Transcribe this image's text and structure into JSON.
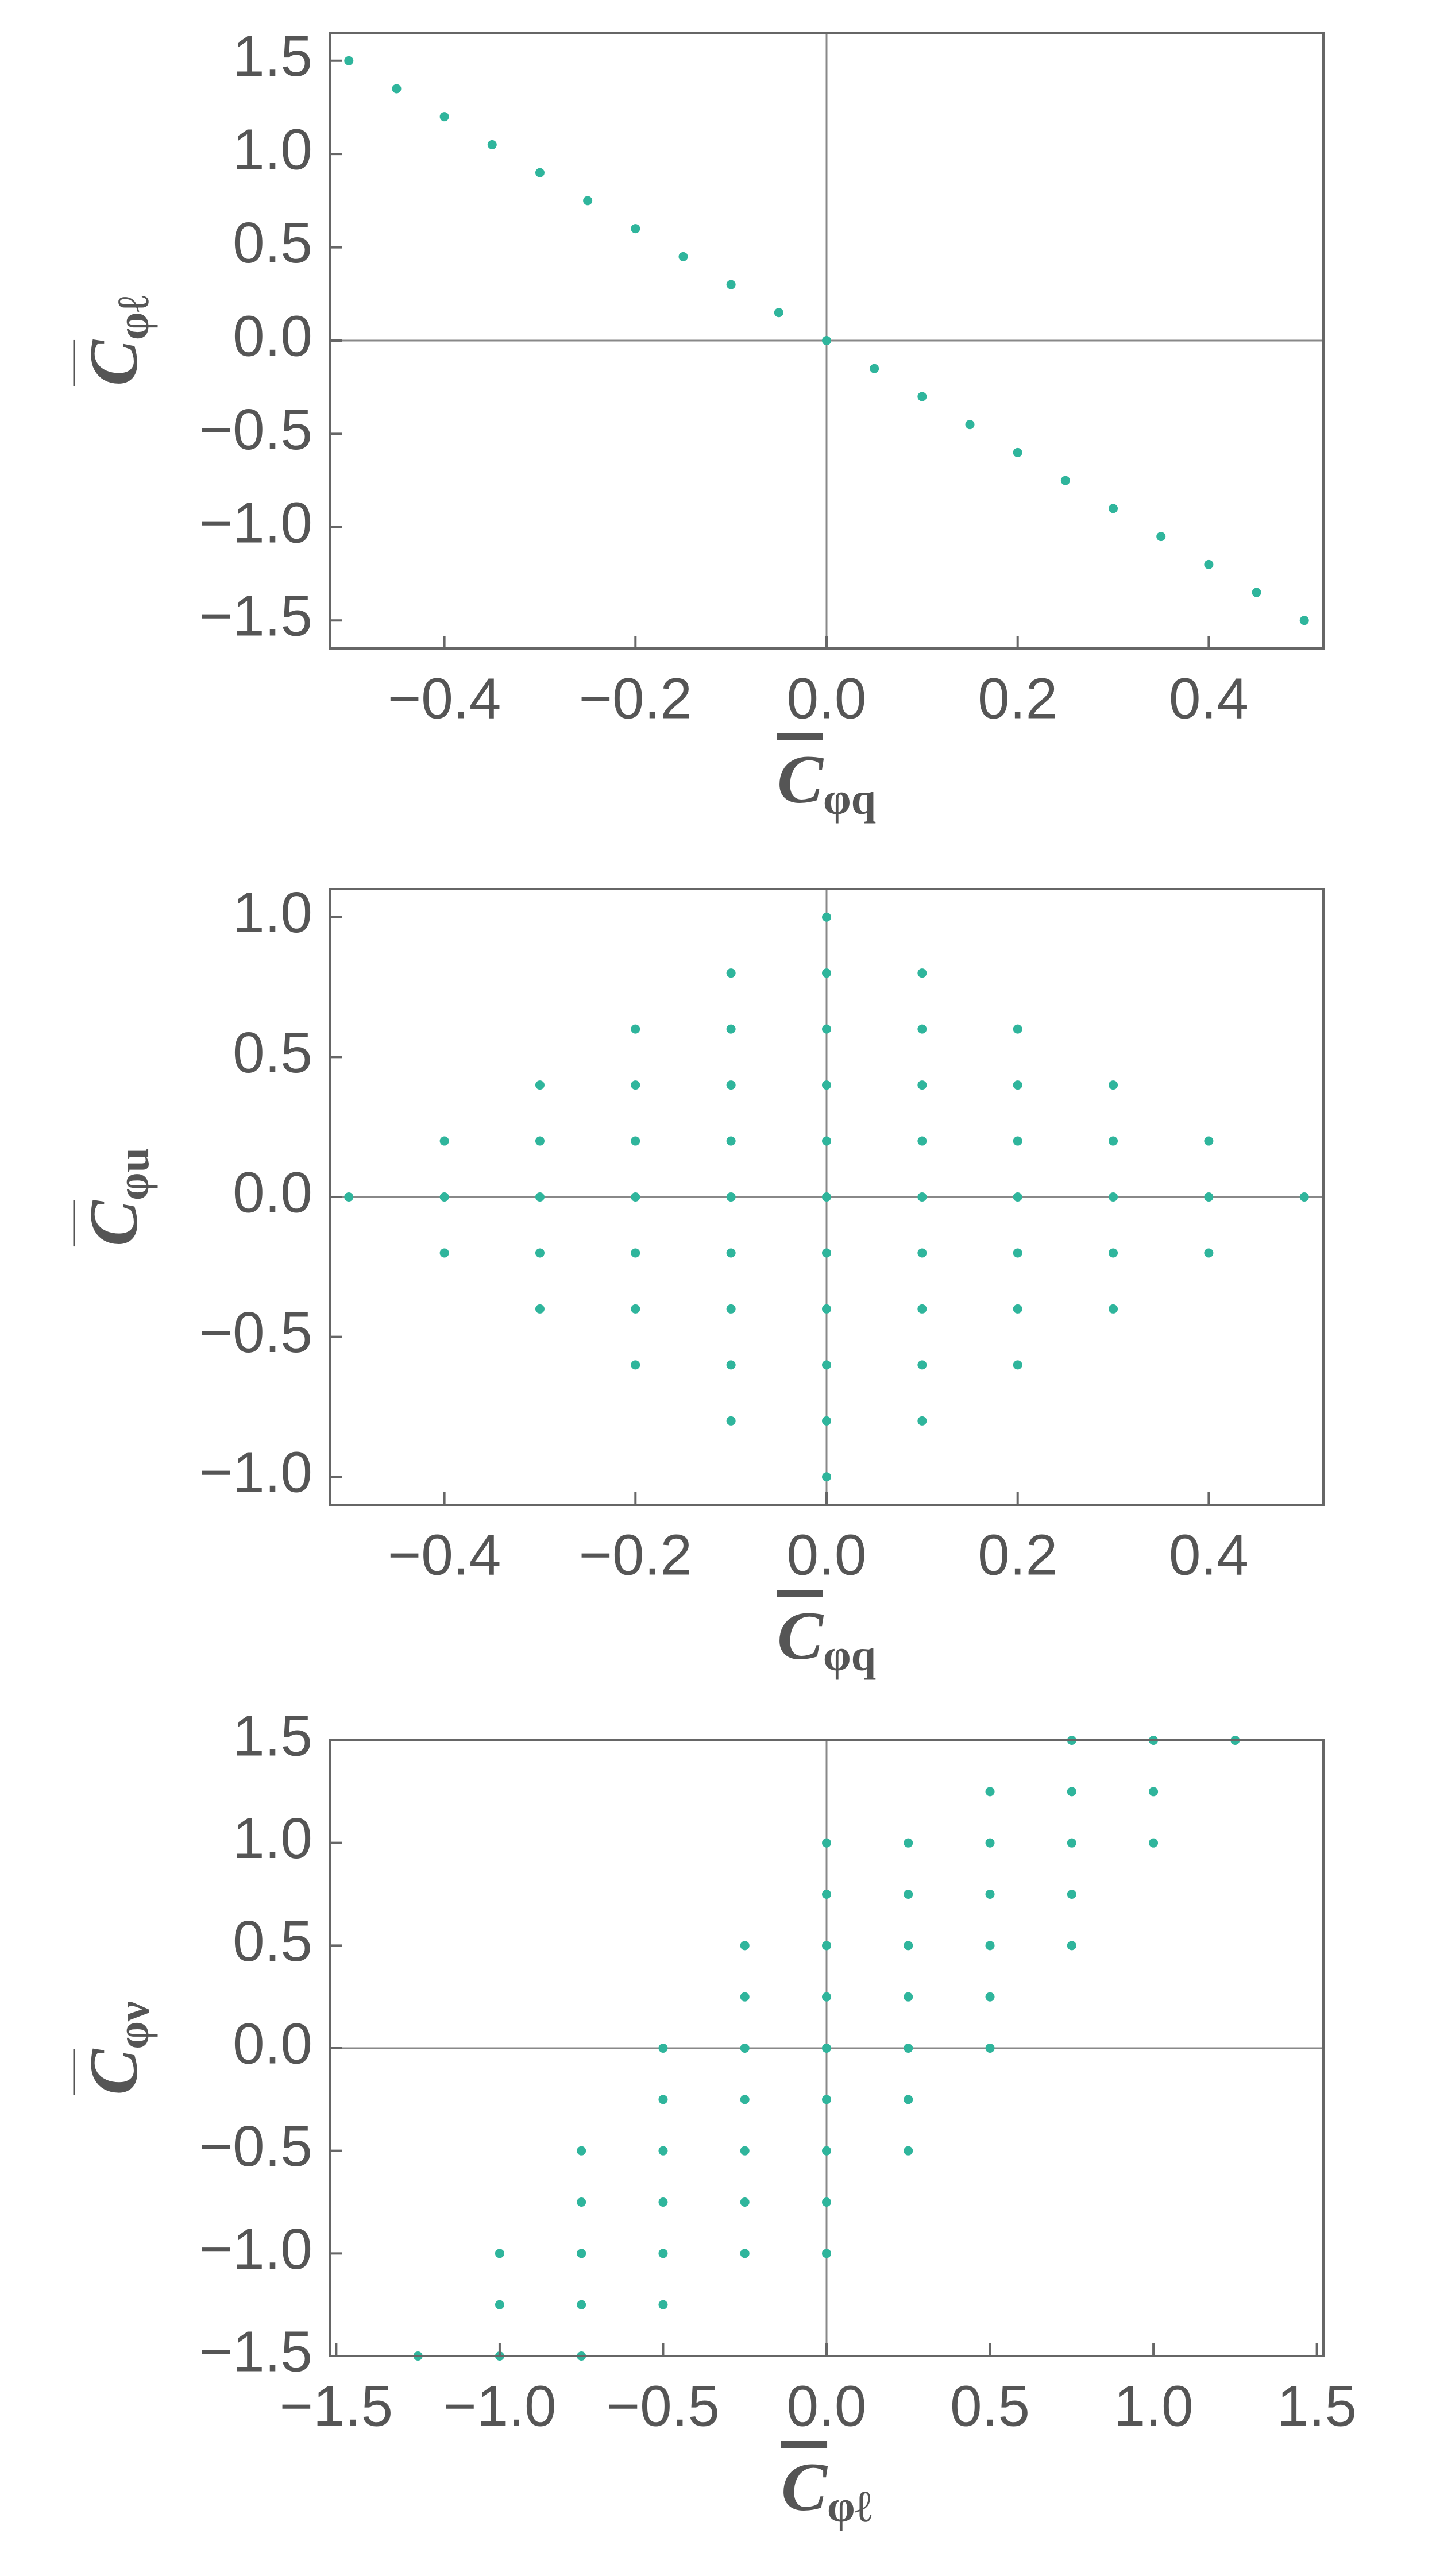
{
  "chart_data": [
    {
      "type": "scatter",
      "x_label": {
        "main": "C",
        "sub": "φq"
      },
      "y_label": {
        "main": "C",
        "sub": "φℓ"
      },
      "xlim": [
        -0.52,
        0.52
      ],
      "ylim": [
        -1.65,
        1.65
      ],
      "xticks": [
        {
          "value": -0.4,
          "label": "−0.4"
        },
        {
          "value": -0.2,
          "label": "−0.2"
        },
        {
          "value": 0,
          "label": "0.0"
        },
        {
          "value": 0.2,
          "label": "0.2"
        },
        {
          "value": 0.4,
          "label": "0.4"
        }
      ],
      "yticks": [
        {
          "value": 1.5,
          "label": "1.5"
        },
        {
          "value": 1,
          "label": "1.0"
        },
        {
          "value": 0.5,
          "label": "0.5"
        },
        {
          "value": 0,
          "label": "0.0"
        },
        {
          "value": -0.5,
          "label": "−0.5"
        },
        {
          "value": -1,
          "label": "−1.0"
        },
        {
          "value": -1.5,
          "label": "−1.5"
        }
      ],
      "axes": true,
      "series": [
        {
          "color": "#2fb59c",
          "x": [
            -0.5,
            -0.45,
            -0.4,
            -0.35,
            -0.3,
            -0.25,
            -0.2,
            -0.15,
            -0.1,
            -0.05,
            0,
            0.05,
            0.1,
            0.15,
            0.2,
            0.25,
            0.3,
            0.35,
            0.4,
            0.45,
            0.5
          ],
          "values": [
            1.5,
            1.35,
            1.2,
            1.05,
            0.9,
            0.75,
            0.6,
            0.45,
            0.3,
            0.15,
            0,
            -0.15,
            -0.3,
            -0.45,
            -0.6,
            -0.75,
            -0.9,
            -1.05,
            -1.2,
            -1.35,
            -1.5
          ]
        }
      ]
    },
    {
      "type": "scatter",
      "x_label": {
        "main": "C",
        "sub": "φq"
      },
      "y_label": {
        "main": "C",
        "sub": "φu"
      },
      "xlim": [
        -0.52,
        0.52
      ],
      "ylim": [
        -1.1,
        1.1
      ],
      "xticks": [
        {
          "value": -0.4,
          "label": "−0.4"
        },
        {
          "value": -0.2,
          "label": "−0.2"
        },
        {
          "value": 0,
          "label": "0.0"
        },
        {
          "value": 0.2,
          "label": "0.2"
        },
        {
          "value": 0.4,
          "label": "0.4"
        }
      ],
      "yticks": [
        {
          "value": 1,
          "label": "1.0"
        },
        {
          "value": 0.5,
          "label": "0.5"
        },
        {
          "value": 0,
          "label": "0.0"
        },
        {
          "value": -0.5,
          "label": "−0.5"
        },
        {
          "value": -1,
          "label": "−1.0"
        }
      ],
      "axes": true,
      "series": [
        {
          "color": "#2fb59c",
          "x": [
            0,
            -0.1,
            0,
            0.1,
            -0.2,
            -0.1,
            0,
            0.1,
            0.2,
            -0.3,
            -0.2,
            -0.1,
            0,
            0.1,
            0.2,
            0.3,
            -0.4,
            -0.3,
            -0.2,
            -0.1,
            0,
            0.1,
            0.2,
            0.3,
            0.4,
            -0.5,
            -0.4,
            -0.3,
            -0.2,
            -0.1,
            0,
            0.1,
            0.2,
            0.3,
            0.4,
            0.5,
            -0.4,
            -0.3,
            -0.2,
            -0.1,
            0,
            0.1,
            0.2,
            0.3,
            0.4,
            -0.3,
            -0.2,
            -0.1,
            0,
            0.1,
            0.2,
            0.3,
            -0.2,
            -0.1,
            0,
            0.1,
            0.2,
            -0.1,
            0,
            0.1,
            0
          ],
          "values": [
            -1,
            -0.8,
            -0.8,
            -0.8,
            -0.6,
            -0.6,
            -0.6,
            -0.6,
            -0.6,
            -0.4,
            -0.4,
            -0.4,
            -0.4,
            -0.4,
            -0.4,
            -0.4,
            -0.2,
            -0.2,
            -0.2,
            -0.2,
            -0.2,
            -0.2,
            -0.2,
            -0.2,
            -0.2,
            0,
            0,
            0,
            0,
            0,
            0,
            0,
            0,
            0,
            0,
            0,
            0.2,
            0.2,
            0.2,
            0.2,
            0.2,
            0.2,
            0.2,
            0.2,
            0.2,
            0.4,
            0.4,
            0.4,
            0.4,
            0.4,
            0.4,
            0.4,
            0.6,
            0.6,
            0.6,
            0.6,
            0.6,
            0.8,
            0.8,
            0.8,
            1
          ]
        }
      ]
    },
    {
      "type": "scatter",
      "x_label": {
        "main": "C",
        "sub": "φℓ"
      },
      "y_label": {
        "main": "C",
        "sub": "φν"
      },
      "xlim": [
        -1.52,
        1.52
      ],
      "ylim": [
        -1.5,
        1.5
      ],
      "xticks": [
        {
          "value": -1.5,
          "label": "−1.5"
        },
        {
          "value": -1,
          "label": "−1.0"
        },
        {
          "value": -0.5,
          "label": "−0.5"
        },
        {
          "value": 0,
          "label": "0.0"
        },
        {
          "value": 0.5,
          "label": "0.5"
        },
        {
          "value": 1,
          "label": "1.0"
        },
        {
          "value": 1.5,
          "label": "1.5"
        }
      ],
      "yticks": [
        {
          "value": 1.5,
          "label": "1.5"
        },
        {
          "value": 1,
          "label": "1.0"
        },
        {
          "value": 0.5,
          "label": "0.5"
        },
        {
          "value": 0,
          "label": "0.0"
        },
        {
          "value": -0.5,
          "label": "−0.5"
        },
        {
          "value": -1,
          "label": "−1.0"
        },
        {
          "value": -1.5,
          "label": "−1.5"
        }
      ],
      "axes": true,
      "series": [
        {
          "color": "#2fb59c",
          "x": [
            -1.25,
            -1,
            -0.75,
            -1,
            -0.75,
            -0.5,
            -1,
            -0.75,
            -0.5,
            -0.25,
            0,
            -0.75,
            -0.5,
            -0.25,
            0,
            -0.75,
            -0.5,
            -0.25,
            0,
            0.25,
            -0.5,
            -0.25,
            0,
            0.25,
            -0.5,
            -0.25,
            0,
            0.25,
            0.5,
            -0.25,
            0,
            0.25,
            0.5,
            -0.25,
            0,
            0.25,
            0.5,
            0.75,
            0,
            0.25,
            0.5,
            0.75,
            0,
            0.25,
            0.5,
            0.75,
            1,
            0.5,
            0.75,
            1,
            0.75,
            1,
            1.25
          ],
          "values": [
            -1.5,
            -1.5,
            -1.5,
            -1.25,
            -1.25,
            -1.25,
            -1,
            -1,
            -1,
            -1,
            -1,
            -0.75,
            -0.75,
            -0.75,
            -0.75,
            -0.5,
            -0.5,
            -0.5,
            -0.5,
            -0.5,
            -0.25,
            -0.25,
            -0.25,
            -0.25,
            0,
            0,
            0,
            0,
            0,
            0.25,
            0.25,
            0.25,
            0.25,
            0.5,
            0.5,
            0.5,
            0.5,
            0.5,
            0.75,
            0.75,
            0.75,
            0.75,
            1,
            1,
            1,
            1,
            1,
            1.25,
            1.25,
            1.25,
            1.5,
            1.5,
            1.5
          ]
        }
      ]
    }
  ]
}
